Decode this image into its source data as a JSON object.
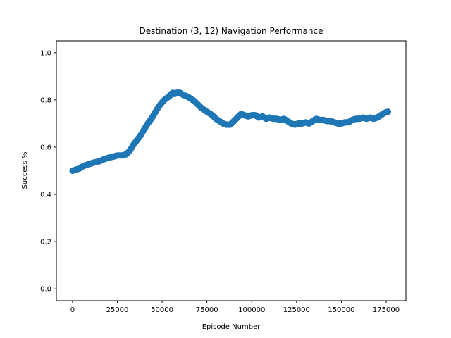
{
  "chart_data": {
    "type": "scatter",
    "title": "Destination (3, 12) Navigation Performance",
    "xlabel": "Episode Number",
    "ylabel": "Success %",
    "xlim": [
      -9000,
      186000
    ],
    "ylim": [
      -0.05,
      1.05
    ],
    "xticks": [
      0,
      25000,
      50000,
      75000,
      100000,
      125000,
      150000,
      175000
    ],
    "yticks": [
      0.0,
      0.2,
      0.4,
      0.6,
      0.8,
      1.0
    ],
    "xtick_labels": [
      "0",
      "25000",
      "50000",
      "75000",
      "100000",
      "125000",
      "150000",
      "175000"
    ],
    "ytick_labels": [
      "0.0",
      "0.2",
      "0.4",
      "0.6",
      "0.8",
      "1.0"
    ],
    "grid": false,
    "series": [
      {
        "color": "#1f77b4",
        "points": [
          [
            0,
            0.5
          ],
          [
            2000,
            0.505
          ],
          [
            4000,
            0.51
          ],
          [
            6000,
            0.52
          ],
          [
            8000,
            0.525
          ],
          [
            10000,
            0.53
          ],
          [
            12000,
            0.535
          ],
          [
            15000,
            0.54
          ],
          [
            18000,
            0.55
          ],
          [
            20000,
            0.555
          ],
          [
            23000,
            0.56
          ],
          [
            25000,
            0.565
          ],
          [
            28000,
            0.565
          ],
          [
            30000,
            0.57
          ],
          [
            32000,
            0.585
          ],
          [
            34000,
            0.61
          ],
          [
            36000,
            0.63
          ],
          [
            38000,
            0.65
          ],
          [
            40000,
            0.675
          ],
          [
            42000,
            0.7
          ],
          [
            44000,
            0.72
          ],
          [
            46000,
            0.745
          ],
          [
            48000,
            0.77
          ],
          [
            50000,
            0.79
          ],
          [
            52000,
            0.805
          ],
          [
            54000,
            0.815
          ],
          [
            55000,
            0.825
          ],
          [
            56000,
            0.83
          ],
          [
            57000,
            0.825
          ],
          [
            58000,
            0.83
          ],
          [
            60000,
            0.83
          ],
          [
            62000,
            0.82
          ],
          [
            64000,
            0.815
          ],
          [
            66000,
            0.805
          ],
          [
            68000,
            0.795
          ],
          [
            70000,
            0.78
          ],
          [
            72000,
            0.765
          ],
          [
            74000,
            0.755
          ],
          [
            76000,
            0.745
          ],
          [
            78000,
            0.735
          ],
          [
            80000,
            0.72
          ],
          [
            82000,
            0.71
          ],
          [
            84000,
            0.7
          ],
          [
            86000,
            0.695
          ],
          [
            88000,
            0.695
          ],
          [
            90000,
            0.71
          ],
          [
            92000,
            0.725
          ],
          [
            94000,
            0.74
          ],
          [
            96000,
            0.735
          ],
          [
            98000,
            0.73
          ],
          [
            100000,
            0.735
          ],
          [
            102000,
            0.735
          ],
          [
            104000,
            0.725
          ],
          [
            106000,
            0.73
          ],
          [
            108000,
            0.72
          ],
          [
            110000,
            0.725
          ],
          [
            112000,
            0.72
          ],
          [
            114000,
            0.72
          ],
          [
            116000,
            0.715
          ],
          [
            118000,
            0.72
          ],
          [
            120000,
            0.71
          ],
          [
            122000,
            0.7
          ],
          [
            124000,
            0.695
          ],
          [
            126000,
            0.7
          ],
          [
            128000,
            0.7
          ],
          [
            130000,
            0.705
          ],
          [
            132000,
            0.7
          ],
          [
            134000,
            0.71
          ],
          [
            136000,
            0.72
          ],
          [
            138000,
            0.715
          ],
          [
            140000,
            0.715
          ],
          [
            142000,
            0.71
          ],
          [
            144000,
            0.71
          ],
          [
            146000,
            0.705
          ],
          [
            148000,
            0.7
          ],
          [
            150000,
            0.7
          ],
          [
            152000,
            0.705
          ],
          [
            154000,
            0.705
          ],
          [
            156000,
            0.715
          ],
          [
            158000,
            0.72
          ],
          [
            160000,
            0.72
          ],
          [
            162000,
            0.725
          ],
          [
            164000,
            0.72
          ],
          [
            166000,
            0.725
          ],
          [
            168000,
            0.72
          ],
          [
            170000,
            0.725
          ],
          [
            172000,
            0.735
          ],
          [
            174000,
            0.745
          ],
          [
            176000,
            0.75
          ]
        ]
      }
    ]
  }
}
